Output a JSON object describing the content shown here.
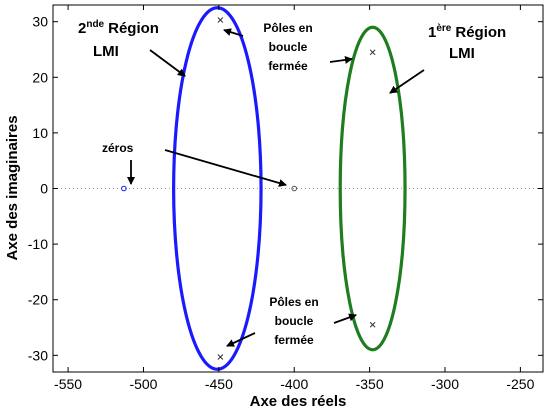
{
  "chart_data": {
    "type": "scatter",
    "xlabel": "Axe des réels",
    "ylabel": "Axe des imaginaires",
    "xlim": [
      -560,
      -235
    ],
    "ylim": [
      -33,
      33
    ],
    "xticks": [
      -550,
      -500,
      -450,
      -400,
      -350,
      -300,
      -250
    ],
    "yticks": [
      -30,
      -20,
      -10,
      0,
      10,
      20,
      30
    ],
    "zero_line": {
      "y": 0,
      "style": "dotted"
    },
    "poles": [
      {
        "x": -449,
        "y": 30.3
      },
      {
        "x": -449,
        "y": -30.3
      },
      {
        "x": -348,
        "y": 24.5
      },
      {
        "x": -348,
        "y": -24.5
      }
    ],
    "zeros": [
      {
        "x": -513,
        "y": 0
      },
      {
        "x": -400,
        "y": 0
      }
    ],
    "regions": [
      {
        "id": "region-2",
        "name_main": "Région",
        "name_prefix": "2",
        "name_sup": "nde",
        "name_line2": "LMI",
        "color": "#1a1aff",
        "cx": -451,
        "cy": 0,
        "rx": 29,
        "ry": 32.5
      },
      {
        "id": "region-1",
        "name_main": "Région",
        "name_prefix": "1",
        "name_sup": "ère",
        "name_line2": "LMI",
        "color": "#1e7d1e",
        "cx": -348,
        "cy": 0,
        "rx": 21.5,
        "ry": 29
      }
    ],
    "annotations": {
      "zeros_label": "zéros",
      "poles_top": [
        "Pôles en",
        "boucle",
        "fermée"
      ],
      "poles_bottom": [
        "Pôles en",
        "boucle",
        "fermée"
      ]
    }
  }
}
